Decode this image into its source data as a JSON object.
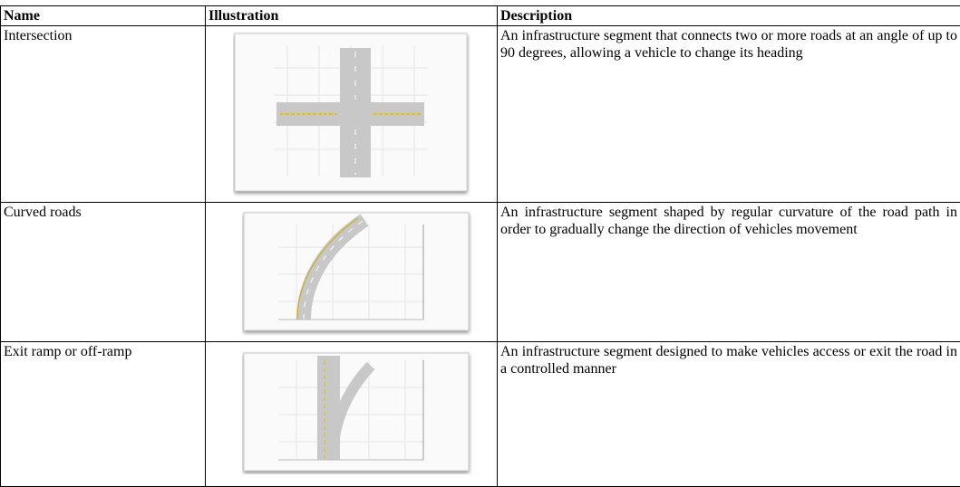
{
  "table": {
    "headers": [
      "Name",
      "Illustration",
      "Description"
    ],
    "rows": [
      {
        "name": "Intersection",
        "description": "An infrastructure segment that connects two or more roads at an angle of up to 90 degrees, allowing a vehicle to change its heading"
      },
      {
        "name": "Curved roads",
        "description": "An infrastructure segment shaped by regular curvature of the road path in order to gradually change the direction of vehicles movement"
      },
      {
        "name": "Exit ramp or off-ramp",
        "description": "An infrastructure segment designed to make vehicles access or exit the road in a controlled manner"
      }
    ]
  }
}
